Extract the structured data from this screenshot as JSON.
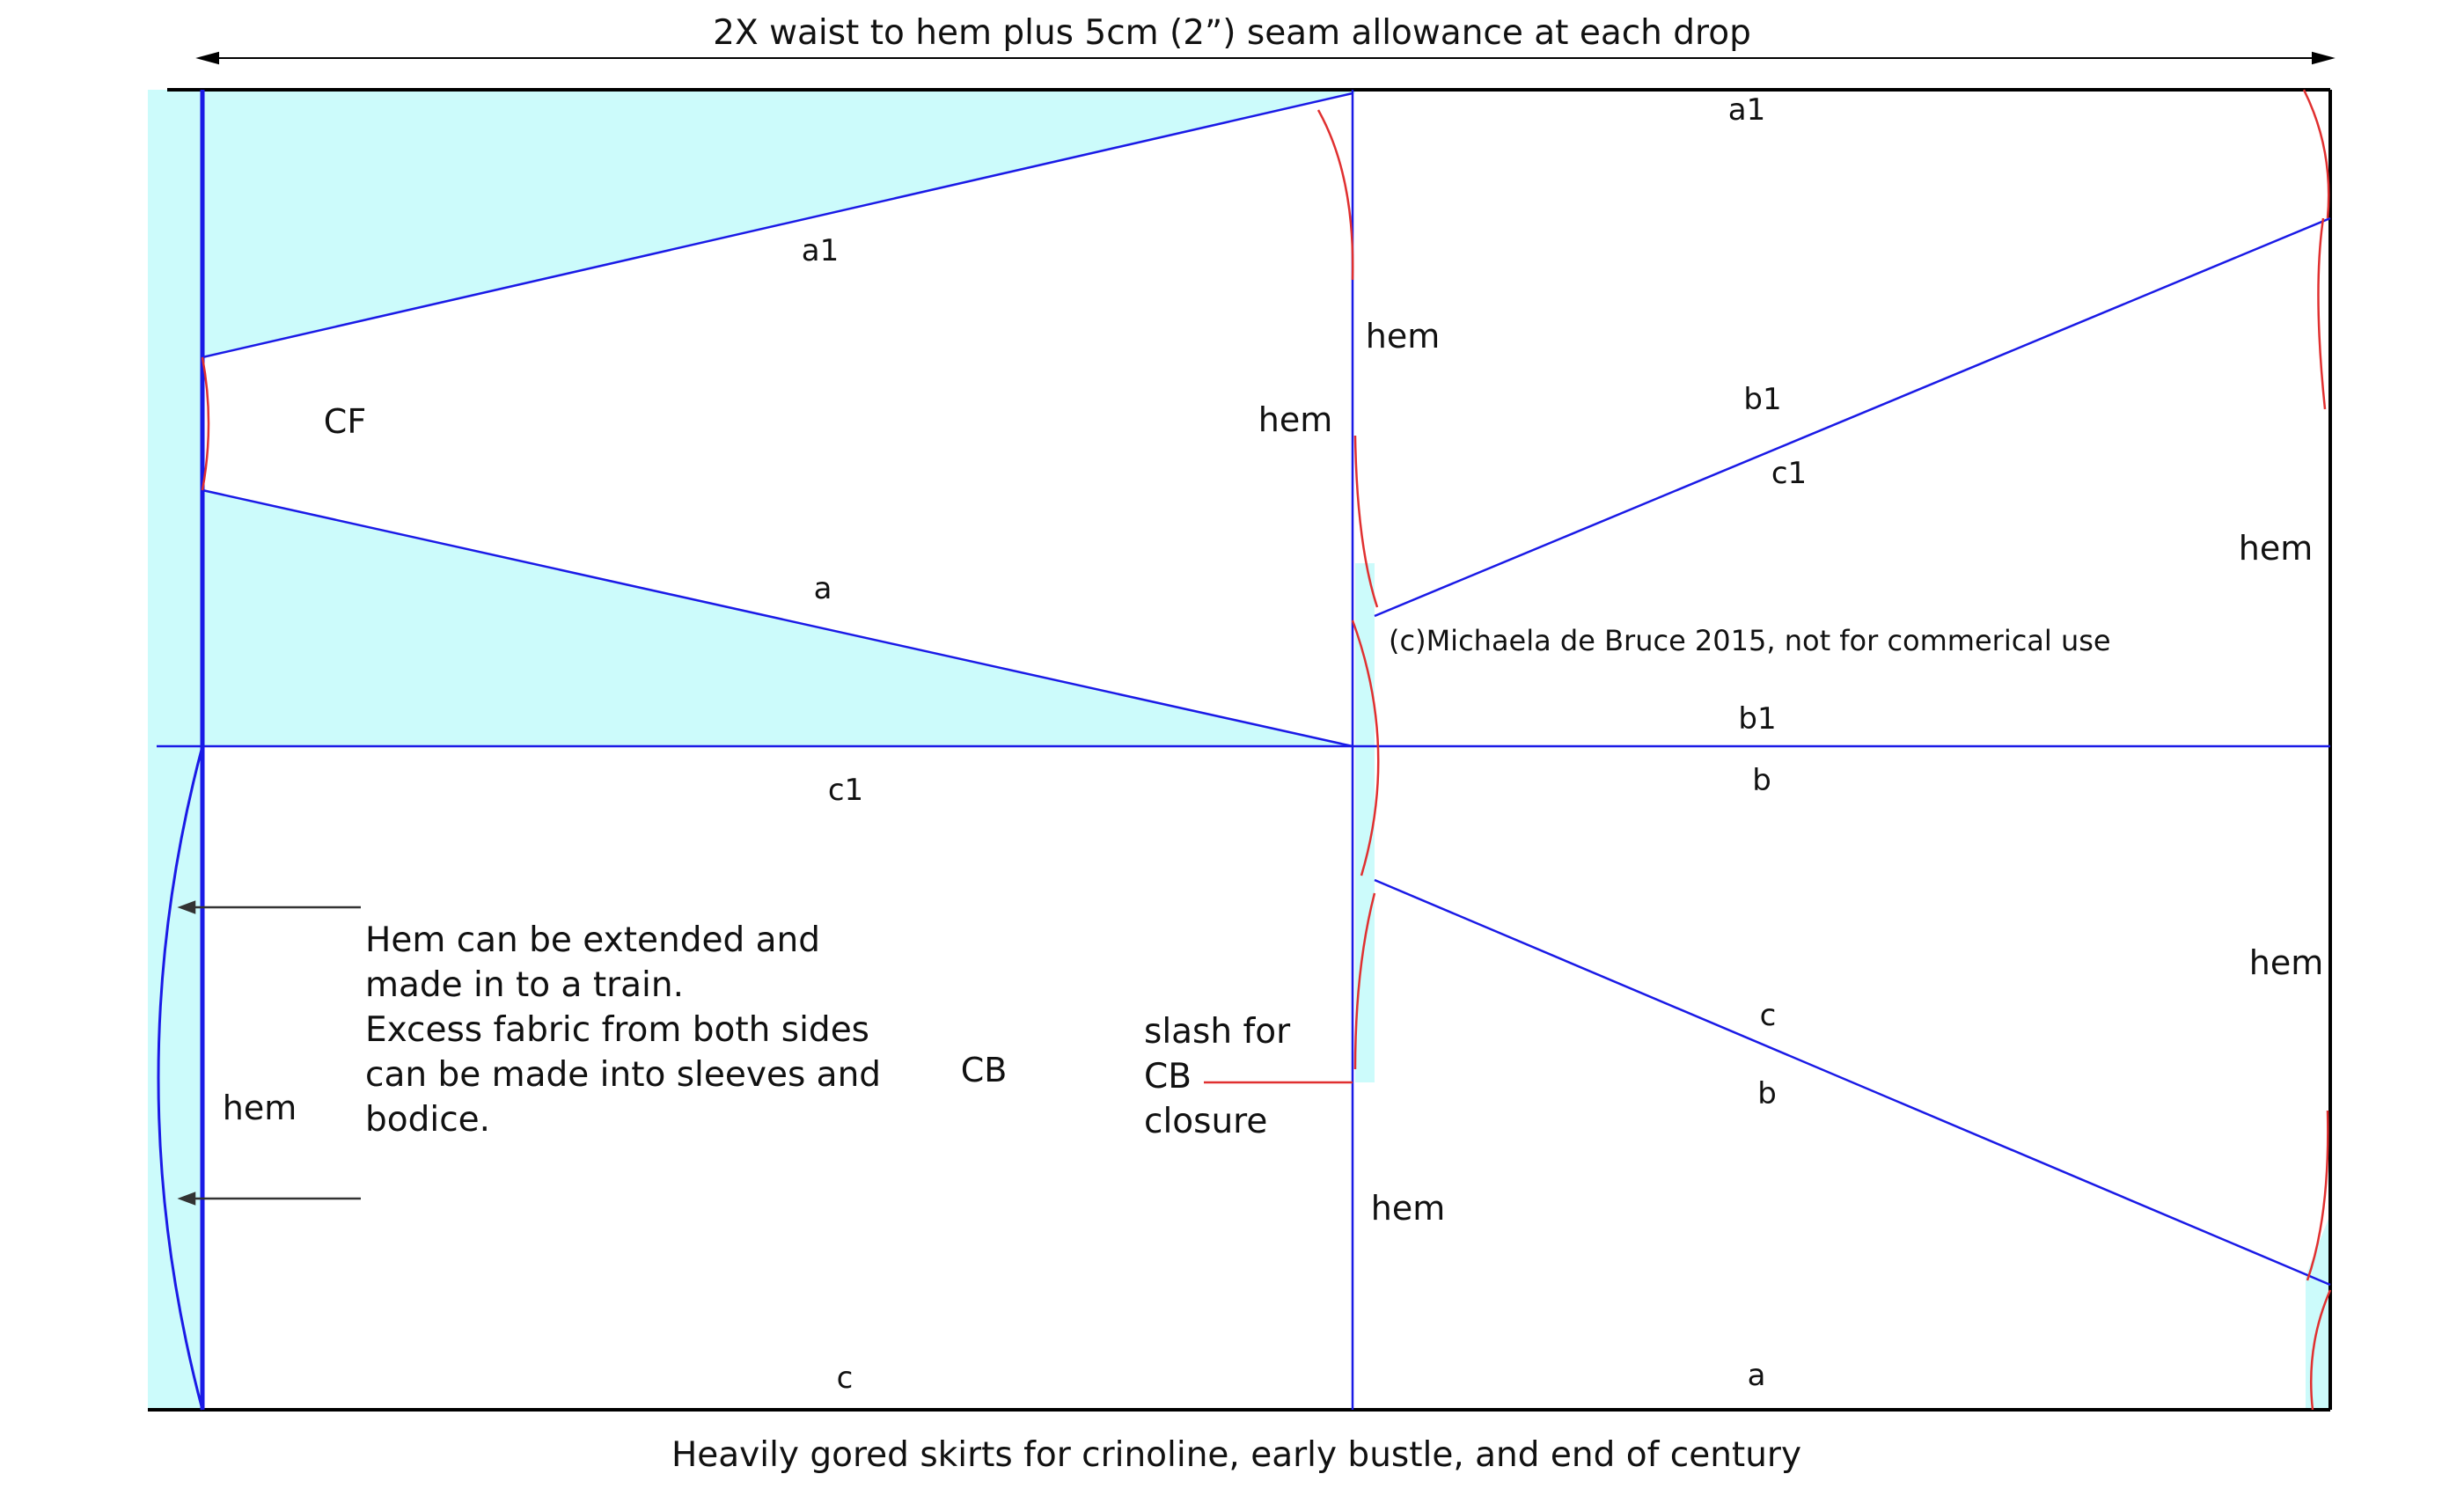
{
  "title": "2X waist to hem plus 5cm (2”) seam allowance at each drop",
  "caption": "Heavily gored skirts for crinoline, early bustle, and end of century",
  "copyright": "(c)Michaela de Bruce 2015, not for commerical use",
  "colors": {
    "fabric_fill": "#ccfbfb",
    "seam_line": "#1a1ae6",
    "hem_curve": "#e03030",
    "outline": "#000000",
    "arrow": "#333333"
  },
  "labels": {
    "a1_top_left": "a1",
    "a1_top_right": "a1",
    "cf": "CF",
    "hem_left_upper": "hem",
    "hem_center_upper": "hem",
    "b1_upper": "b1",
    "c1_upper": "c1",
    "hem_right_upper": "hem",
    "a_left": "a",
    "b1_mid": "b1",
    "c1_mid": "c1",
    "b_mid": "b",
    "cb": "CB",
    "hem_right_lower": "hem",
    "c_right": "c",
    "b_right": "b",
    "hem_left_lower": "hem",
    "hem_center_lower": "hem",
    "c_bottom": "c",
    "a_bottom": "a"
  },
  "note_lines": [
    "Hem can be extended and",
    "made in to a train.",
    "Excess fabric from both sides",
    "can be made into sleeves and",
    "bodice."
  ],
  "slash_lines": [
    "slash for",
    "CB",
    "closure"
  ]
}
